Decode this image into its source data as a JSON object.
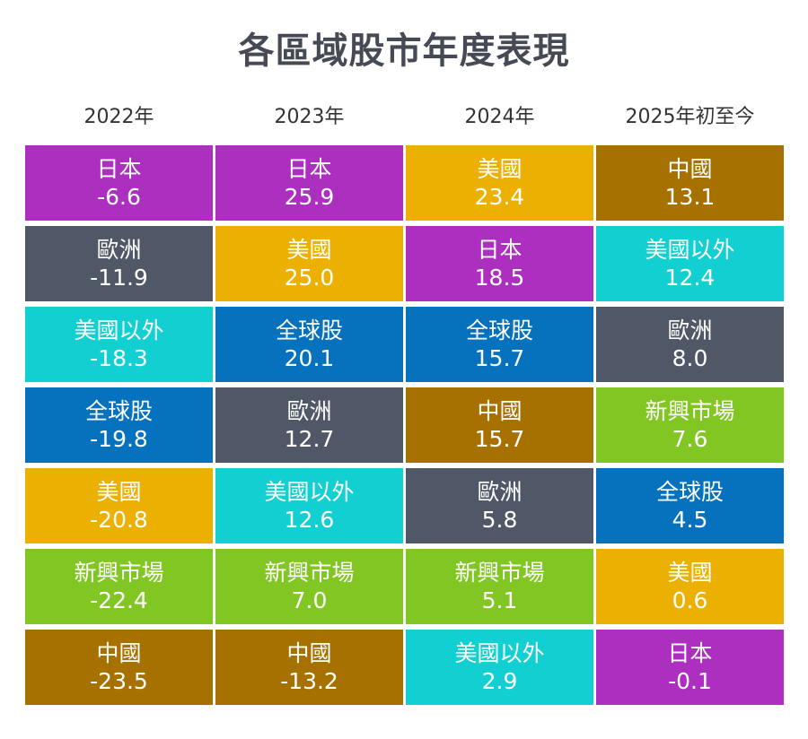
{
  "title": "各區域股市年度表現",
  "colors": {
    "日本": "#ad2fbf",
    "歐洲": "#505867",
    "美國以外": "#12d0d1",
    "全球股": "#0671bc",
    "美國": "#ecb000",
    "新興市場": "#82c623",
    "中國": "#a77100"
  },
  "chart_data": {
    "type": "table",
    "title": "各區域股市年度表現",
    "columns": [
      {
        "header": "2022年",
        "rows": [
          {
            "name": "日本",
            "value": "-6.6"
          },
          {
            "name": "歐洲",
            "value": "-11.9"
          },
          {
            "name": "美國以外",
            "value": "-18.3"
          },
          {
            "name": "全球股",
            "value": "-19.8"
          },
          {
            "name": "美國",
            "value": "-20.8"
          },
          {
            "name": "新興市場",
            "value": "-22.4"
          },
          {
            "name": "中國",
            "value": "-23.5"
          }
        ]
      },
      {
        "header": "2023年",
        "rows": [
          {
            "name": "日本",
            "value": "25.9"
          },
          {
            "name": "美國",
            "value": "25.0"
          },
          {
            "name": "全球股",
            "value": "20.1"
          },
          {
            "name": "歐洲",
            "value": "12.7"
          },
          {
            "name": "美國以外",
            "value": "12.6"
          },
          {
            "name": "新興市場",
            "value": "7.0"
          },
          {
            "name": "中國",
            "value": "-13.2"
          }
        ]
      },
      {
        "header": "2024年",
        "rows": [
          {
            "name": "美國",
            "value": "23.4"
          },
          {
            "name": "日本",
            "value": "18.5"
          },
          {
            "name": "全球股",
            "value": "15.7"
          },
          {
            "name": "中國",
            "value": "15.7"
          },
          {
            "name": "歐洲",
            "value": "5.8"
          },
          {
            "name": "新興市場",
            "value": "5.1"
          },
          {
            "name": "美國以外",
            "value": "2.9"
          }
        ]
      },
      {
        "header": "2025年初至今",
        "rows": [
          {
            "name": "中國",
            "value": "13.1"
          },
          {
            "name": "美國以外",
            "value": "12.4"
          },
          {
            "name": "歐洲",
            "value": "8.0"
          },
          {
            "name": "新興市場",
            "value": "7.6"
          },
          {
            "name": "全球股",
            "value": "4.5"
          },
          {
            "name": "美國",
            "value": "0.6"
          },
          {
            "name": "日本",
            "value": "-0.1"
          }
        ]
      }
    ]
  }
}
